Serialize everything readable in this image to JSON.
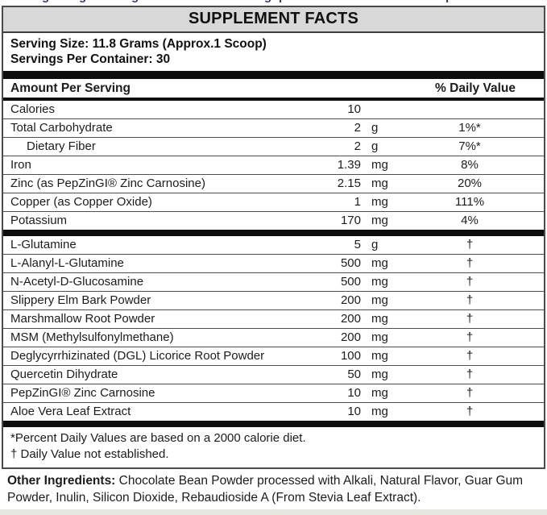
{
  "colors": {
    "title_bar_bg": "#d8d8d8",
    "thick_bar": "#0d0d0d",
    "border": "#4a4a4a",
    "text": "#1c1c1c",
    "top_fragment_text": "#2d3a6e",
    "bottom_strip": "#e8e6e3"
  },
  "top_clipped_fragments": [
    "g",
    "g",
    "g",
    "g",
    "p",
    "p"
  ],
  "title": "SUPPLEMENT FACTS",
  "serving": {
    "size_line": "Serving Size: 11.8 Grams (Approx.1 Scoop)",
    "container_line": "Servings Per Container: 30"
  },
  "header": {
    "amount_label": "Amount Per Serving",
    "dv_label": "% Daily Value"
  },
  "rows": [
    {
      "name": "Calories",
      "amount": "10",
      "unit": "",
      "dv": "",
      "indent": false,
      "thick_after": false
    },
    {
      "name": "Total Carbohydrate",
      "amount": "2",
      "unit": "g",
      "dv": "1%*",
      "indent": false,
      "thick_after": false
    },
    {
      "name": "Dietary Fiber",
      "amount": "2",
      "unit": "g",
      "dv": "7%*",
      "indent": true,
      "thick_after": false
    },
    {
      "name": "Iron",
      "amount": "1.39",
      "unit": "mg",
      "dv": "8%",
      "indent": false,
      "thick_after": false
    },
    {
      "name": "Zinc (as PepZinGI® Zinc Carnosine)",
      "amount": "2.15",
      "unit": "mg",
      "dv": "20%",
      "indent": false,
      "thick_after": false
    },
    {
      "name": "Copper (as Copper Oxide)",
      "amount": "1",
      "unit": "mg",
      "dv": "111%",
      "indent": false,
      "thick_after": false
    },
    {
      "name": "Potassium",
      "amount": "170",
      "unit": "mg",
      "dv": "4%",
      "indent": false,
      "thick_after": true
    },
    {
      "name": "L-Glutamine",
      "amount": "5",
      "unit": "g",
      "dv": "†",
      "indent": false,
      "thick_after": false
    },
    {
      "name": "L-Alanyl-L-Glutamine",
      "amount": "500",
      "unit": "mg",
      "dv": "†",
      "indent": false,
      "thick_after": false
    },
    {
      "name": "N-Acetyl-D-Glucosamine",
      "amount": "500",
      "unit": "mg",
      "dv": "†",
      "indent": false,
      "thick_after": false
    },
    {
      "name": "Slippery Elm Bark Powder",
      "amount": "200",
      "unit": "mg",
      "dv": "†",
      "indent": false,
      "thick_after": false
    },
    {
      "name": "Marshmallow Root Powder",
      "amount": "200",
      "unit": "mg",
      "dv": "†",
      "indent": false,
      "thick_after": false
    },
    {
      "name": "MSM (Methylsulfonylmethane)",
      "amount": "200",
      "unit": "mg",
      "dv": "†",
      "indent": false,
      "thick_after": false
    },
    {
      "name": "Deglycyrrhizinated (DGL) Licorice Root Powder",
      "amount": "100",
      "unit": "mg",
      "dv": "†",
      "indent": false,
      "thick_after": false
    },
    {
      "name": "Quercetin Dihydrate",
      "amount": "50",
      "unit": "mg",
      "dv": "†",
      "indent": false,
      "thick_after": false
    },
    {
      "name": "PepZinGI® Zinc Carnosine",
      "amount": "10",
      "unit": "mg",
      "dv": "†",
      "indent": false,
      "thick_after": false
    },
    {
      "name": "Aloe Vera Leaf Extract",
      "amount": "10",
      "unit": "mg",
      "dv": "†",
      "indent": false,
      "thick_after": true
    }
  ],
  "footnotes": {
    "percent_note": "*Percent Daily Values are based on a 2000 calorie diet.",
    "dagger_note": "† Daily Value not established."
  },
  "other_ingredients": {
    "label": "Other Ingredients:",
    "text": " Chocolate Bean Powder processed with Alkali, Natural Flavor, Guar Gum Powder, Inulin, Silicon Dioxide, Rebaudioside A (From Stevia Leaf Extract)."
  }
}
